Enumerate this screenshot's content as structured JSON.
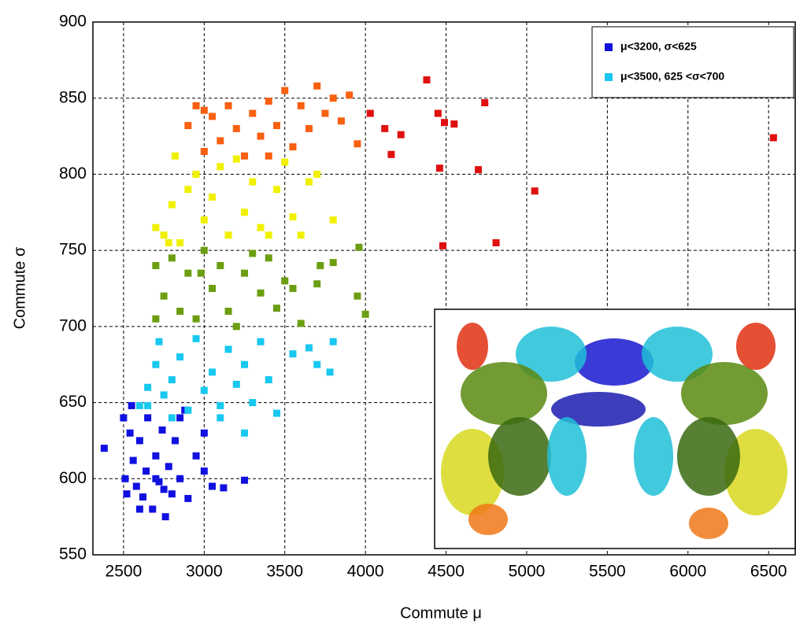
{
  "chart_data": {
    "type": "scatter",
    "x_label": "Commute μ",
    "y_label": "Commute σ",
    "xlim": [
      2310,
      6665
    ],
    "ylim": [
      550,
      900
    ],
    "xticks": [
      2500,
      3000,
      3500,
      4000,
      4500,
      5000,
      5500,
      6000,
      6500
    ],
    "yticks": [
      550,
      600,
      650,
      700,
      750,
      800,
      850,
      900
    ],
    "grid": true,
    "legend_position": "upper right",
    "series": [
      {
        "name": "μ<3200, σ<625",
        "color": "#1010e0",
        "x": [
          2380,
          2500,
          2510,
          2520,
          2540,
          2560,
          2580,
          2600,
          2620,
          2640,
          2650,
          2680,
          2700,
          2720,
          2740,
          2760,
          2780,
          2800,
          2820,
          2850,
          2880,
          2900,
          2950,
          3000,
          3000,
          3050,
          3120,
          3250,
          2600,
          2700,
          2750,
          2850,
          2550
        ],
        "y": [
          620,
          640,
          600,
          590,
          630,
          612,
          595,
          625,
          588,
          605,
          640,
          580,
          615,
          598,
          632,
          575,
          608,
          590,
          625,
          600,
          645,
          587,
          615,
          605,
          630,
          595,
          594,
          599,
          580,
          600,
          593,
          640,
          648
        ]
      },
      {
        "name": "μ<3500, 625 <σ<700",
        "color": "#18c8f0",
        "x": [
          2600,
          2650,
          2700,
          2720,
          2750,
          2800,
          2850,
          2900,
          2950,
          3000,
          3050,
          3100,
          3150,
          3200,
          3250,
          3300,
          3350,
          3400,
          3450,
          3550,
          3650,
          3700,
          3800,
          3780,
          3250,
          3100,
          2800,
          2650
        ],
        "y": [
          648,
          660,
          675,
          690,
          655,
          665,
          680,
          645,
          692,
          658,
          670,
          648,
          685,
          662,
          675,
          650,
          690,
          665,
          643,
          682,
          686,
          675,
          690,
          670,
          630,
          640,
          640,
          648
        ]
      },
      {
        "color": "#6b9e10",
        "x": [
          2700,
          2750,
          2800,
          2850,
          2900,
          2950,
          3000,
          3050,
          3100,
          3150,
          3200,
          3250,
          3300,
          3350,
          3400,
          3450,
          3500,
          3550,
          3600,
          3700,
          3800,
          3950,
          3960,
          4000,
          2700,
          2980,
          3720
        ],
        "y": [
          705,
          720,
          745,
          710,
          735,
          705,
          750,
          725,
          740,
          710,
          700,
          735,
          748,
          722,
          745,
          712,
          730,
          725,
          702,
          728,
          742,
          720,
          752,
          708,
          740,
          735,
          740
        ]
      },
      {
        "color": "#f0f000",
        "x": [
          2700,
          2750,
          2800,
          2820,
          2850,
          2900,
          2950,
          3000,
          3050,
          3100,
          3150,
          3200,
          3250,
          3300,
          3350,
          3400,
          3450,
          3500,
          3550,
          3600,
          3650,
          3700,
          3800,
          2780
        ],
        "y": [
          765,
          760,
          780,
          812,
          755,
          790,
          800,
          770,
          785,
          805,
          760,
          810,
          775,
          795,
          765,
          760,
          790,
          808,
          772,
          760,
          795,
          800,
          770,
          755
        ]
      },
      {
        "color": "#f86010",
        "x": [
          2900,
          2950,
          3000,
          3050,
          3100,
          3150,
          3200,
          3250,
          3300,
          3350,
          3400,
          3450,
          3500,
          3550,
          3600,
          3650,
          3700,
          3750,
          3800,
          3850,
          3900,
          3950,
          3000,
          3400
        ],
        "y": [
          832,
          845,
          815,
          838,
          822,
          845,
          830,
          812,
          840,
          825,
          848,
          832,
          855,
          818,
          845,
          830,
          858,
          840,
          850,
          835,
          852,
          820,
          842,
          812
        ]
      },
      {
        "color": "#e01010",
        "x": [
          4030,
          4120,
          4160,
          4220,
          4380,
          4450,
          4460,
          4480,
          4490,
          4550,
          4700,
          4740,
          4810,
          5050,
          6530
        ],
        "y": [
          840,
          830,
          813,
          826,
          862,
          840,
          804,
          753,
          834,
          833,
          803,
          847,
          755,
          789,
          824
        ]
      }
    ]
  }
}
